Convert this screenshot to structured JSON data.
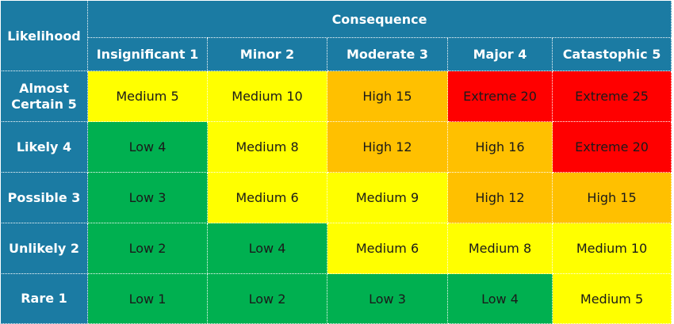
{
  "corner_label": "Likelihood",
  "consequence_label": "Consequence",
  "columns": [
    "Insignificant 1",
    "Minor 2",
    "Moderate 3",
    "Major 4",
    "Catastophic 5"
  ],
  "rows": [
    {
      "label": "Almost Certain 5",
      "cells": [
        {
          "text": "Medium 5",
          "level": "medium"
        },
        {
          "text": "Medium 10",
          "level": "medium"
        },
        {
          "text": "High 15",
          "level": "high"
        },
        {
          "text": "Extreme 20",
          "level": "extreme"
        },
        {
          "text": "Extreme 25",
          "level": "extreme"
        }
      ]
    },
    {
      "label": "Likely 4",
      "cells": [
        {
          "text": "Low 4",
          "level": "low"
        },
        {
          "text": "Medium 8",
          "level": "medium"
        },
        {
          "text": "High 12",
          "level": "high"
        },
        {
          "text": "High 16",
          "level": "high"
        },
        {
          "text": "Extreme 20",
          "level": "extreme"
        }
      ]
    },
    {
      "label": "Possible 3",
      "cells": [
        {
          "text": "Low 3",
          "level": "low"
        },
        {
          "text": "Medium 6",
          "level": "medium"
        },
        {
          "text": "Medium 9",
          "level": "medium"
        },
        {
          "text": "High 12",
          "level": "high"
        },
        {
          "text": "High 15",
          "level": "high"
        }
      ]
    },
    {
      "label": "Unlikely 2",
      "cells": [
        {
          "text": "Low 2",
          "level": "low"
        },
        {
          "text": "Low 4",
          "level": "low"
        },
        {
          "text": "Medium 6",
          "level": "medium"
        },
        {
          "text": "Medium 8",
          "level": "medium"
        },
        {
          "text": "Medium 10",
          "level": "medium"
        }
      ]
    },
    {
      "label": "Rare 1",
      "cells": [
        {
          "text": "Low 1",
          "level": "low"
        },
        {
          "text": "Low 2",
          "level": "low"
        },
        {
          "text": "Low 3",
          "level": "low"
        },
        {
          "text": "Low 4",
          "level": "low"
        },
        {
          "text": "Medium 5",
          "level": "medium"
        }
      ]
    }
  ],
  "colors": {
    "header": "#1b7ba3",
    "low": "#00b050",
    "medium": "#ffff00",
    "high": "#ffc000",
    "extreme": "#ff0000"
  }
}
